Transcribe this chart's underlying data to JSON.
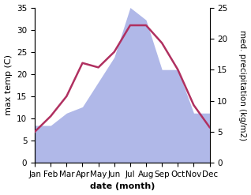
{
  "months": [
    "Jan",
    "Feb",
    "Mar",
    "Apr",
    "May",
    "Jun",
    "Jul",
    "Aug",
    "Sep",
    "Oct",
    "Nov",
    "Dec"
  ],
  "temperature": [
    7,
    10.5,
    15,
    22.5,
    21.5,
    25,
    31,
    31,
    27,
    21,
    13,
    8
  ],
  "precipitation": [
    6,
    6,
    8,
    9,
    13,
    17,
    25,
    23,
    15,
    15,
    8,
    8
  ],
  "temp_color": "#b03060",
  "precip_color": "#b0b8e8",
  "temp_ylim": [
    0,
    35
  ],
  "precip_ylim": [
    0,
    25
  ],
  "temp_yticks": [
    0,
    5,
    10,
    15,
    20,
    25,
    30,
    35
  ],
  "precip_yticks": [
    0,
    5,
    10,
    15,
    20,
    25
  ],
  "xlabel": "date (month)",
  "ylabel_left": "max temp (C)",
  "ylabel_right": "med. precipitation (kg/m2)",
  "label_fontsize": 8,
  "tick_fontsize": 7.5
}
